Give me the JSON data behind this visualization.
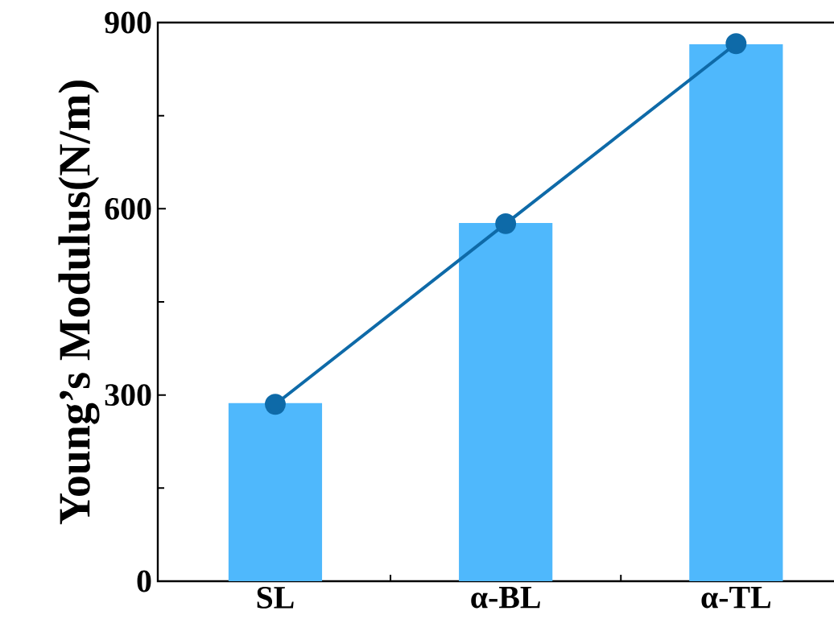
{
  "chart_data": {
    "type": "bar",
    "ylabel": "Young’s Modulus(N/m)",
    "categories": [
      "SL",
      "α-BL",
      "α-TL"
    ],
    "ylim": [
      0,
      900
    ],
    "yticks": [
      0,
      300,
      600,
      900
    ],
    "series": [
      {
        "color": "#4fb8fc",
        "values": [
          287,
          577,
          865
        ]
      },
      {
        "type": "line",
        "color": "#0e6aa8",
        "marker": "circle",
        "line_style": "solid",
        "values": [
          285,
          576,
          866
        ]
      }
    ]
  }
}
